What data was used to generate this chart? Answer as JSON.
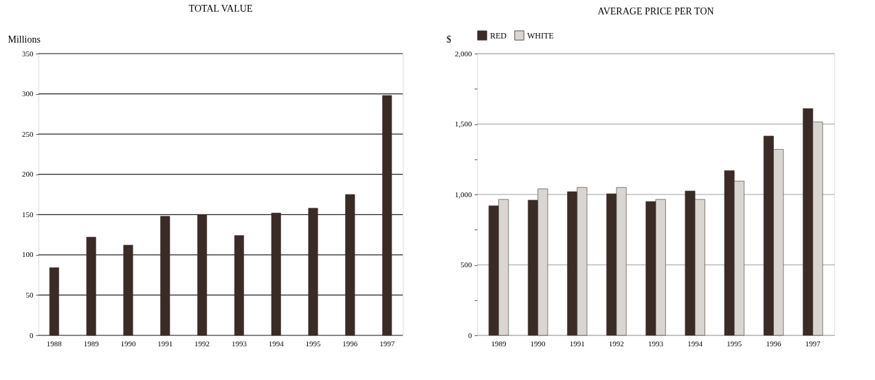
{
  "chart_data": [
    {
      "type": "bar",
      "title": "TOTAL VALUE",
      "ylabel": "Millions",
      "categories": [
        "1988",
        "1989",
        "1990",
        "1991",
        "1992",
        "1993",
        "1994",
        "1995",
        "1996",
        "1997"
      ],
      "values": [
        84,
        122,
        112,
        148,
        150,
        124,
        152,
        158,
        175,
        298
      ],
      "color": "#3a2b27",
      "ylim": [
        0,
        350
      ],
      "yticks": [
        0,
        50,
        100,
        150,
        200,
        250,
        300,
        350
      ],
      "grid": "y",
      "legend": false
    },
    {
      "type": "bar",
      "title": "AVERAGE PRICE PER TON",
      "ylabel": "$",
      "categories": [
        "1989",
        "1990",
        "1991",
        "1992",
        "1993",
        "1994",
        "1995",
        "1996",
        "1997"
      ],
      "series": [
        {
          "name": "RED",
          "color": "#3a2b27",
          "values": [
            920,
            960,
            1020,
            1005,
            950,
            1025,
            1170,
            1415,
            1610
          ]
        },
        {
          "name": "WHITE",
          "color": "#d9d6d2",
          "values": [
            965,
            1040,
            1050,
            1050,
            965,
            965,
            1095,
            1320,
            1515
          ]
        }
      ],
      "ylim": [
        0,
        2000
      ],
      "yticks": [
        0,
        {
          "value": 250,
          "label": null
        },
        500,
        {
          "value": 750,
          "label": null
        },
        {
          "value": 1000,
          "label": "1,000"
        },
        {
          "value": 1250,
          "label": null
        },
        {
          "value": 1500,
          "label": "1,500"
        },
        {
          "value": 1750,
          "label": null
        },
        {
          "value": 2000,
          "label": "2,000"
        }
      ],
      "grid": "y",
      "legend": "top"
    }
  ]
}
